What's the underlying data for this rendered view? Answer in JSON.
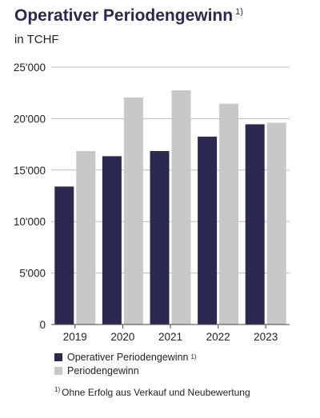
{
  "chart_data": {
    "type": "bar",
    "title": "Operativer Periodengewinn",
    "title_marker": "1)",
    "subtitle": "in TCHF",
    "categories": [
      "2019",
      "2020",
      "2021",
      "2022",
      "2023"
    ],
    "series": [
      {
        "name": "Operativer Periodengewinn",
        "marker": "1)",
        "color": "#2b2950",
        "values": [
          13400,
          16350,
          16850,
          18250,
          19450
        ]
      },
      {
        "name": "Periodengewinn",
        "color": "#c8c8c8",
        "values": [
          16850,
          22050,
          22750,
          21450,
          19600
        ]
      }
    ],
    "ylim": [
      0,
      25000
    ],
    "yticks": [
      0,
      5000,
      10000,
      15000,
      20000,
      25000
    ],
    "ytick_labels": [
      "0",
      "5'000",
      "10'000",
      "15'000",
      "20'000",
      "25'000"
    ],
    "grid": true,
    "legend_position": "bottom-left"
  },
  "footnote": {
    "marker": "1)",
    "text": "Ohne Erfolg aus Verkauf und Neubewertung"
  }
}
